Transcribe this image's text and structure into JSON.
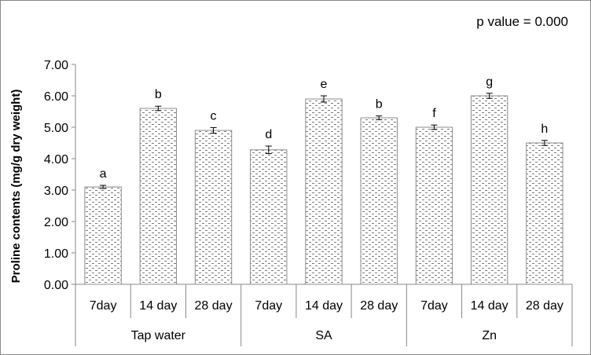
{
  "chart_data": {
    "type": "bar",
    "annotation": "p value = 0.000",
    "ylabel": "Proline contents (mg/g dry weight)",
    "ylim": [
      0,
      7
    ],
    "yticks": [
      "0.00",
      "1.00",
      "2.00",
      "3.00",
      "4.00",
      "5.00",
      "6.00",
      "7.00"
    ],
    "categories": [
      "7day",
      "14 day",
      "28 day",
      "7day",
      "14 day",
      "28 day",
      "7day",
      "14 day",
      "28 day"
    ],
    "groups": [
      {
        "label": "Tap water",
        "start": 0,
        "count": 3
      },
      {
        "label": "SA",
        "start": 3,
        "count": 3
      },
      {
        "label": "Zn",
        "start": 6,
        "count": 3
      }
    ],
    "values": [
      3.1,
      5.6,
      4.9,
      4.28,
      5.9,
      5.3,
      5.0,
      6.0,
      4.5
    ],
    "errors": [
      0.05,
      0.07,
      0.09,
      0.12,
      0.1,
      0.06,
      0.07,
      0.08,
      0.08
    ],
    "letters": [
      "a",
      "b",
      "c",
      "d",
      "e",
      "b",
      "f",
      "g",
      "h"
    ],
    "grid": false,
    "legend": "none",
    "bar_fill": "#ffffff",
    "bar_pattern_color": "#7a7a7a",
    "bar_stroke": "#8c8c8c"
  }
}
